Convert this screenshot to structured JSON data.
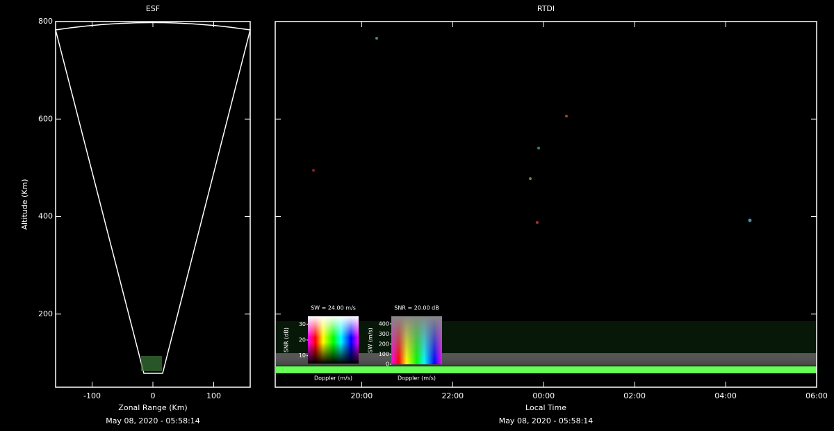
{
  "chart_data": [
    {
      "type": "fan",
      "title": "ESF",
      "xlabel": "Zonal Range (Km)",
      "ylabel": "Altitude (Km)",
      "footer": "May 08, 2020 - 05:58:14",
      "xlim": [
        -160,
        160
      ],
      "xticks": [
        -100,
        0,
        100
      ],
      "ylim": [
        50,
        800
      ],
      "yticks": [
        200,
        400,
        600,
        800
      ]
    },
    {
      "type": "image",
      "title": "RTDI",
      "xlabel": "Local Time",
      "footer": "May 08, 2020 - 05:58:14",
      "xlim": [
        18.1,
        30
      ],
      "xticks": [
        {
          "value": 20,
          "label": "20:00"
        },
        {
          "value": 22,
          "label": "22:00"
        },
        {
          "value": 24,
          "label": "00:00"
        },
        {
          "value": 26,
          "label": "02:00"
        },
        {
          "value": 28,
          "label": "04:00"
        },
        {
          "value": 30,
          "label": "06:00"
        }
      ],
      "ylim": [
        50,
        800
      ],
      "yticks": [
        200,
        400,
        600,
        800
      ],
      "legends": [
        {
          "title": "SW = 24.00 m/s",
          "ylabel": "SNR (dB)",
          "xlabel": "Doppler (m/s)",
          "ylim": [
            5,
            35
          ],
          "yticks": [
            10,
            20,
            30
          ]
        },
        {
          "title": "SNR = 20.00 dB",
          "ylabel": "SW (m/s)",
          "xlabel": "Doppler (m/s)",
          "ylim": [
            0,
            475
          ],
          "yticks": [
            0,
            100,
            200,
            300,
            400
          ]
        }
      ]
    }
  ]
}
